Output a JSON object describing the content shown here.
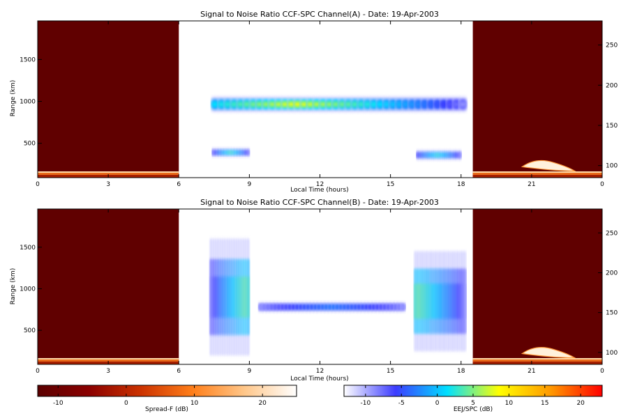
{
  "chart_data": [
    {
      "type": "heatmap",
      "title": "Signal to Noise Ratio CCF-SPC Channel(A) - Date: 19-Apr-2003",
      "xlabel": "Local Time (hours)",
      "ylabel": "Range (km)",
      "xlim": [
        0,
        24
      ],
      "x_ticks": [
        "0",
        "3",
        "6",
        "9",
        "12",
        "15",
        "18",
        "21",
        "0"
      ],
      "ylim": [
        90,
        1960
      ],
      "y_ticks": [
        "500",
        "1000",
        "1500"
      ],
      "right_ylim": [
        85,
        280
      ],
      "right_y_ticks": [
        "100",
        "150",
        "200",
        "250"
      ],
      "night_intervals_hours": [
        [
          0,
          6
        ],
        [
          18.5,
          24
        ]
      ],
      "spread_f_level_db": -12,
      "ejcolor_regions": [
        {
          "t0": 7.4,
          "t1": 18.2,
          "r_center": 965,
          "r_halfwidth": 90,
          "peak_db": 8,
          "peak_time": 11
        },
        {
          "t0": 7.4,
          "t1": 9.0,
          "r_center": 390,
          "r_halfwidth": 55,
          "peak_db": 4,
          "peak_time": 8.2
        },
        {
          "t0": 16.1,
          "t1": 18.0,
          "r_center": 360,
          "r_halfwidth": 60,
          "peak_db": 3,
          "peak_time": 17
        }
      ],
      "grid": false
    },
    {
      "type": "heatmap",
      "title": "Signal to Noise Ratio CCF-SPC Channel(B) - Date: 19-Apr-2003",
      "xlabel": "Local Time (hours)",
      "ylabel": "Range (km)",
      "xlim": [
        0,
        24
      ],
      "x_ticks": [
        "0",
        "3",
        "6",
        "9",
        "12",
        "15",
        "18",
        "21",
        "0"
      ],
      "ylim": [
        90,
        1960
      ],
      "y_ticks": [
        "500",
        "1000",
        "1500"
      ],
      "right_ylim": [
        85,
        280
      ],
      "right_y_ticks": [
        "100",
        "150",
        "200",
        "250"
      ],
      "night_intervals_hours": [
        [
          0,
          6
        ],
        [
          18.5,
          24
        ]
      ],
      "spread_f_level_db": -12,
      "ejcolor_regions": [
        {
          "t0": 7.3,
          "t1": 9.0,
          "r_center": 900,
          "r_halfwidth": 700,
          "peak_db": 5,
          "peak_time": 8.8
        },
        {
          "t0": 9.4,
          "t1": 15.6,
          "r_center": 780,
          "r_halfwidth": 60,
          "peak_db": -3,
          "peak_time": 12.5
        },
        {
          "t0": 16.0,
          "t1": 18.2,
          "r_center": 850,
          "r_halfwidth": 600,
          "peak_db": 5,
          "peak_time": 16.2
        }
      ],
      "grid": false
    }
  ],
  "colorbars": {
    "spread_f": {
      "label": "Spread-F (dB)",
      "range": [
        -13,
        25
      ],
      "ticks": [
        "-10",
        "0",
        "10",
        "20"
      ],
      "colors": [
        "#5a0000",
        "#8b0000",
        "#cc3300",
        "#ff7f1a",
        "#ffc78a",
        "#ffffff"
      ]
    },
    "eej_spc": {
      "label": "EEJ/SPC (dB)",
      "range": [
        -13,
        23
      ],
      "ticks": [
        "-10",
        "-5",
        "0",
        "5",
        "10",
        "15",
        "20"
      ],
      "colors": [
        "#ffffff",
        "#3c3cff",
        "#00e0ff",
        "#ffff00",
        "#ff9900",
        "#ff0000"
      ]
    }
  }
}
